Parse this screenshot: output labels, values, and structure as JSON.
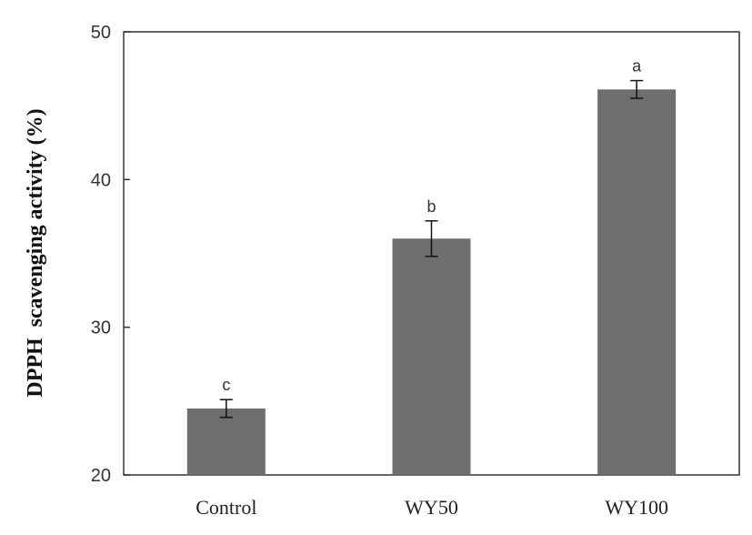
{
  "chart_data": {
    "type": "bar",
    "title": "",
    "xlabel": "",
    "ylabel": "DPPH  scavenging activity (%)",
    "categories": [
      "Control",
      "WY50",
      "WY100"
    ],
    "values": [
      24.5,
      36.0,
      46.1
    ],
    "errors": [
      0.6,
      1.2,
      0.6
    ],
    "significance": [
      "c",
      "b",
      "a"
    ],
    "ylim": [
      20,
      50
    ],
    "yticks": [
      20,
      30,
      40,
      50
    ],
    "grid": false,
    "bar_color": "#6e6e6e"
  }
}
